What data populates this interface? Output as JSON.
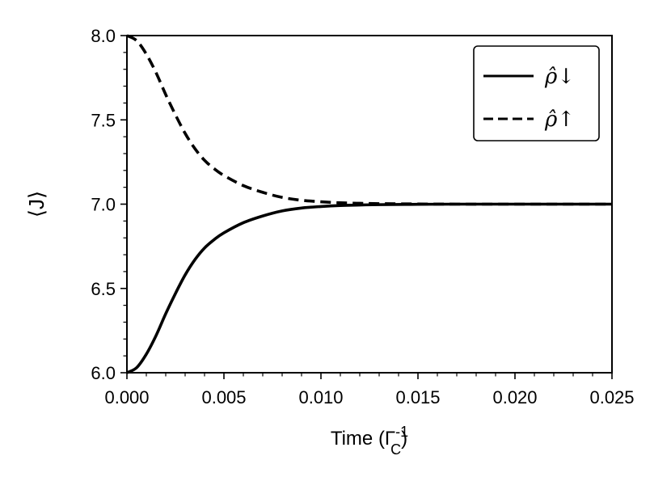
{
  "chart_data": {
    "type": "line",
    "xlabel": "Time (Γ_C^{-1})",
    "ylabel": "⟨J⟩",
    "xlim": [
      0.0,
      0.025
    ],
    "ylim": [
      6.0,
      8.0
    ],
    "xticks": [
      0.0,
      0.005,
      0.01,
      0.015,
      0.02,
      0.025
    ],
    "xtick_labels": [
      "0.000",
      "0.005",
      "0.010",
      "0.015",
      "0.020",
      "0.025"
    ],
    "yticks": [
      6.0,
      6.5,
      7.0,
      7.5,
      8.0
    ],
    "ytick_labels": [
      "6.0",
      "6.5",
      "7.0",
      "7.5",
      "8.0"
    ],
    "grid": false,
    "legend_position": "top-right",
    "x": [
      0.0,
      0.0005,
      0.001,
      0.0015,
      0.002,
      0.0025,
      0.003,
      0.0035,
      0.004,
      0.0045,
      0.005,
      0.006,
      0.007,
      0.008,
      0.009,
      0.01,
      0.011,
      0.012,
      0.013,
      0.015,
      0.017,
      0.02,
      0.025
    ],
    "series": [
      {
        "name": "ρ̂↓",
        "style": "solid",
        "color": "#000000",
        "values": [
          6.0,
          6.03,
          6.11,
          6.22,
          6.35,
          6.47,
          6.58,
          6.67,
          6.74,
          6.79,
          6.83,
          6.89,
          6.93,
          6.96,
          6.977,
          6.986,
          6.992,
          6.995,
          6.997,
          6.999,
          7.0,
          7.0,
          7.0
        ]
      },
      {
        "name": "ρ̂↑",
        "style": "dashed",
        "color": "#000000",
        "values": [
          8.0,
          7.97,
          7.89,
          7.78,
          7.65,
          7.53,
          7.42,
          7.33,
          7.26,
          7.21,
          7.17,
          7.11,
          7.07,
          7.04,
          7.023,
          7.014,
          7.008,
          7.005,
          7.003,
          7.001,
          7.0,
          7.0,
          7.0
        ]
      }
    ]
  }
}
